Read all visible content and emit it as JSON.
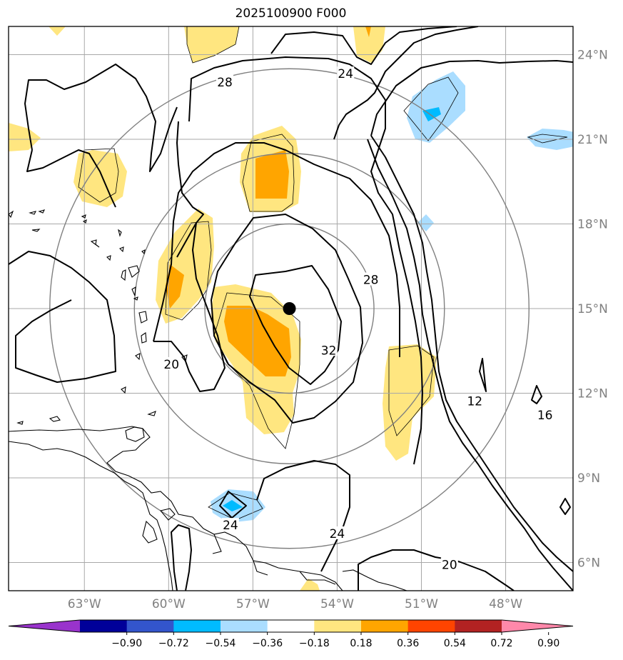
{
  "title": "2025100900 F000",
  "map": {
    "lon_range": [
      -65.7,
      -45.6
    ],
    "lat_range": [
      5.0,
      25.0
    ],
    "lon_ticks": [
      {
        "lon": -63,
        "label": "63°W"
      },
      {
        "lon": -60,
        "label": "60°W"
      },
      {
        "lon": -57,
        "label": "57°W"
      },
      {
        "lon": -54,
        "label": "54°W"
      },
      {
        "lon": -51,
        "label": "51°W"
      },
      {
        "lon": -48,
        "label": "48°W"
      }
    ],
    "lat_ticks": [
      {
        "lat": 24,
        "label": "24°N"
      },
      {
        "lat": 21,
        "label": "21°N"
      },
      {
        "lat": 18,
        "label": "18°N"
      },
      {
        "lat": 15,
        "label": "15°N"
      },
      {
        "lat": 12,
        "label": "12°N"
      },
      {
        "lat": 9,
        "label": "9°N"
      },
      {
        "lat": 6,
        "label": "6°N"
      }
    ],
    "grid": true,
    "storm_center": {
      "lon": -55.7,
      "lat": 15.0
    },
    "range_rings_deg": [
      3,
      5.5,
      8.5
    ]
  },
  "contour_labels": [
    {
      "text": "28",
      "lon": -58.0,
      "lat": 23.0
    },
    {
      "text": "24",
      "lon": -53.7,
      "lat": 23.3
    },
    {
      "text": "28",
      "lon": -52.8,
      "lat": 16.0
    },
    {
      "text": "32",
      "lon": -54.3,
      "lat": 13.5
    },
    {
      "text": "20",
      "lon": -59.9,
      "lat": 13.0
    },
    {
      "text": "12",
      "lon": -49.1,
      "lat": 11.7
    },
    {
      "text": "16",
      "lon": -46.6,
      "lat": 11.2
    },
    {
      "text": "24",
      "lon": -57.8,
      "lat": 7.3
    },
    {
      "text": "24",
      "lon": -54.0,
      "lat": 7.0
    },
    {
      "text": "20",
      "lon": -50.0,
      "lat": 5.9
    }
  ],
  "colorbar": {
    "colors": [
      "#9933cc",
      "#000099",
      "#3355cc",
      "#00bbff",
      "#aaddff",
      "#ffffff",
      "#ffe680",
      "#ffa500",
      "#ff4400",
      "#b22222",
      "#ff88aa"
    ],
    "tick_labels": [
      "−0.90",
      "−0.72",
      "−0.54",
      "−0.36",
      "−0.18",
      "0.18",
      "0.36",
      "0.54",
      "0.72",
      "0.90"
    ]
  }
}
